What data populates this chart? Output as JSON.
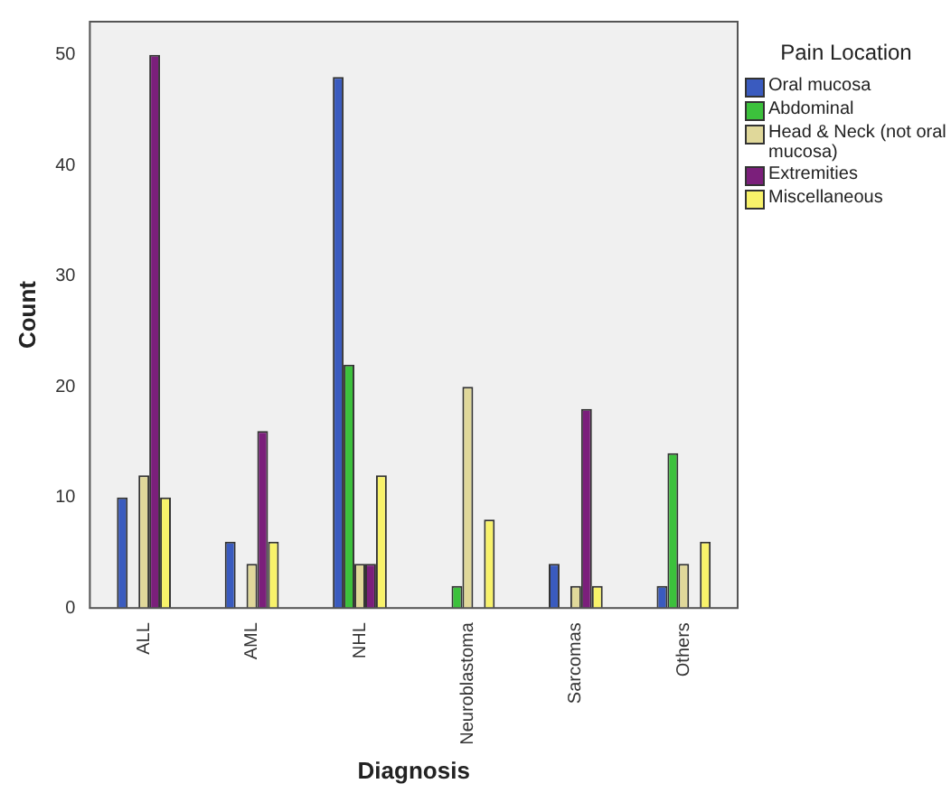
{
  "chart_data": {
    "type": "bar",
    "xlabel": "Diagnosis",
    "ylabel": "Count",
    "legend_title": "Pain Location",
    "legend": "right",
    "grid": false,
    "categories": [
      "ALL",
      "AML",
      "NHL",
      "Neuroblastoma",
      "Sarcomas",
      "Others"
    ],
    "ylim": [
      0,
      53
    ],
    "yticks": [
      0,
      10,
      20,
      30,
      40,
      50
    ],
    "series": [
      {
        "name": "Oral mucosa",
        "color": "#3a5bbf",
        "values": [
          10,
          6,
          48,
          0,
          4,
          2
        ]
      },
      {
        "name": "Abdominal",
        "color": "#3cc13c",
        "values": [
          0,
          0,
          22,
          2,
          0,
          14
        ]
      },
      {
        "name": "Head & Neck (not oral mucosa)",
        "color": "#e0d89a",
        "values": [
          12,
          4,
          4,
          20,
          2,
          4
        ]
      },
      {
        "name": "Extremities",
        "color": "#7b1f7b",
        "values": [
          50,
          16,
          4,
          0,
          18,
          0
        ]
      },
      {
        "name": "Miscellaneous",
        "color": "#f8f26a",
        "values": [
          10,
          6,
          12,
          8,
          2,
          6
        ]
      }
    ]
  }
}
